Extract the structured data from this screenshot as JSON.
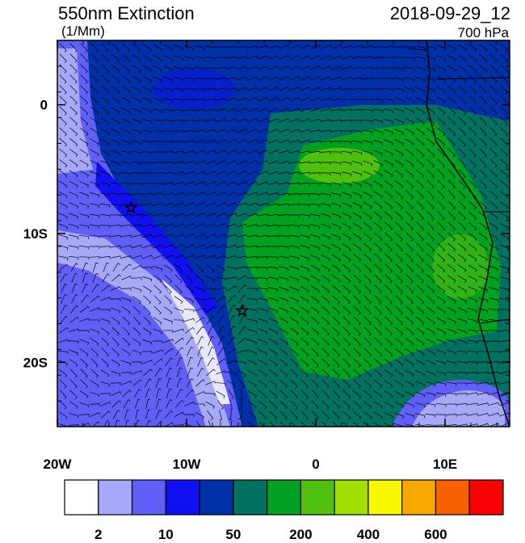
{
  "header": {
    "title": "550nm Extinction",
    "units": "(1/Mm)",
    "time": "2018-09-29_12",
    "level": "700 hPa"
  },
  "map": {
    "lon_range": [
      -20,
      15
    ],
    "lat_range": [
      5,
      -25
    ],
    "lat_ticks": [
      {
        "value": 0,
        "label": "0"
      },
      {
        "value": -10,
        "label": "10S"
      },
      {
        "value": -20,
        "label": "20S"
      }
    ],
    "lon_ticks": [
      {
        "value": -20,
        "label": "20W"
      },
      {
        "value": -10,
        "label": "10W"
      },
      {
        "value": 0,
        "label": "0"
      },
      {
        "value": 10,
        "label": "10E"
      }
    ],
    "stars": [
      {
        "lon": -14.3,
        "lat": -8.0
      },
      {
        "lon": -5.7,
        "lat": -16.0
      }
    ]
  },
  "colorbar": {
    "colors": [
      "#ffffff",
      "#a8a8f8",
      "#6060f8",
      "#1010f0",
      "#0030a8",
      "#007060",
      "#00a020",
      "#50c010",
      "#a0e000",
      "#f8f800",
      "#f8a800",
      "#f86000",
      "#f80000"
    ],
    "labels": [
      {
        "boundary": 1,
        "label": "2"
      },
      {
        "boundary": 3,
        "label": "10"
      },
      {
        "boundary": 5,
        "label": "50"
      },
      {
        "boundary": 7,
        "label": "200"
      },
      {
        "boundary": 9,
        "label": "400"
      },
      {
        "boundary": 11,
        "label": "600"
      }
    ]
  }
}
